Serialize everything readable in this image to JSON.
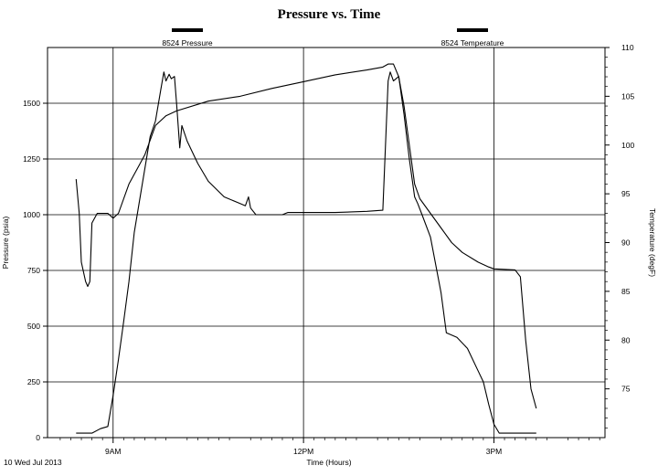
{
  "chart_data": {
    "type": "line",
    "title": "Pressure vs. Time",
    "xlabel": "Time (Hours)",
    "ylabel": "Pressure (psia)",
    "y2label": "Temperature (degF)",
    "date_label": "10 Wed Jul 2013",
    "x_range": [
      "07:58",
      "16:45"
    ],
    "x_ticks": [
      {
        "time": "09:00",
        "label": "9AM"
      },
      {
        "time": "12:00",
        "label": "12PM"
      },
      {
        "time": "15:00",
        "label": "3PM"
      }
    ],
    "ylim": [
      0,
      1750
    ],
    "y_ticks": [
      0,
      250,
      500,
      750,
      1000,
      1250,
      1500
    ],
    "y2lim": [
      70,
      110
    ],
    "y2_ticks": [
      75,
      80,
      85,
      90,
      95,
      100,
      105,
      110
    ],
    "grid": true,
    "legend_position": "top",
    "series": [
      {
        "name": "8524 Pressure",
        "axis": "left",
        "color": "#000000",
        "points": [
          [
            "08:25",
            20
          ],
          [
            "08:40",
            20
          ],
          [
            "08:48",
            40
          ],
          [
            "08:55",
            50
          ],
          [
            "09:00",
            190
          ],
          [
            "09:05",
            350
          ],
          [
            "09:10",
            520
          ],
          [
            "09:15",
            700
          ],
          [
            "09:20",
            920
          ],
          [
            "09:28",
            1150
          ],
          [
            "09:35",
            1350
          ],
          [
            "09:40",
            1420
          ],
          [
            "09:45",
            1560
          ],
          [
            "09:48",
            1640
          ],
          [
            "09:50",
            1600
          ],
          [
            "09:53",
            1630
          ],
          [
            "09:55",
            1610
          ],
          [
            "09:58",
            1620
          ],
          [
            "10:00",
            1500
          ],
          [
            "10:03",
            1300
          ],
          [
            "10:05",
            1400
          ],
          [
            "10:10",
            1330
          ],
          [
            "10:20",
            1230
          ],
          [
            "10:30",
            1150
          ],
          [
            "10:45",
            1080
          ],
          [
            "11:00",
            1050
          ],
          [
            "11:05",
            1040
          ],
          [
            "11:08",
            1080
          ],
          [
            "11:10",
            1030
          ],
          [
            "11:15",
            1000
          ],
          [
            "11:30",
            1000
          ],
          [
            "11:40",
            1000
          ],
          [
            "11:45",
            1010
          ],
          [
            "12:00",
            1010
          ],
          [
            "12:30",
            1010
          ],
          [
            "13:00",
            1015
          ],
          [
            "13:15",
            1020
          ],
          [
            "13:20",
            1600
          ],
          [
            "13:22",
            1640
          ],
          [
            "13:25",
            1600
          ],
          [
            "13:30",
            1620
          ],
          [
            "13:35",
            1450
          ],
          [
            "13:40",
            1250
          ],
          [
            "13:45",
            1080
          ],
          [
            "13:48",
            1050
          ],
          [
            "13:52",
            1000
          ],
          [
            "14:00",
            900
          ],
          [
            "14:10",
            650
          ],
          [
            "14:15",
            470
          ],
          [
            "14:25",
            450
          ],
          [
            "14:35",
            400
          ],
          [
            "14:45",
            300
          ],
          [
            "14:50",
            250
          ],
          [
            "14:55",
            150
          ],
          [
            "15:00",
            60
          ],
          [
            "15:05",
            20
          ],
          [
            "15:20",
            20
          ],
          [
            "15:40",
            20
          ]
        ]
      },
      {
        "name": "8524 Temperature",
        "axis": "right",
        "color": "#000000",
        "points": [
          [
            "08:25",
            96.5
          ],
          [
            "08:28",
            93
          ],
          [
            "08:30",
            88
          ],
          [
            "08:34",
            86
          ],
          [
            "08:36",
            85.5
          ],
          [
            "08:38",
            86
          ],
          [
            "08:40",
            92
          ],
          [
            "08:45",
            93
          ],
          [
            "08:55",
            93
          ],
          [
            "09:00",
            92.5
          ],
          [
            "09:05",
            93
          ],
          [
            "09:15",
            96
          ],
          [
            "09:25",
            98
          ],
          [
            "09:30",
            99
          ],
          [
            "09:40",
            102
          ],
          [
            "09:50",
            103
          ],
          [
            "10:00",
            103.5
          ],
          [
            "10:30",
            104.5
          ],
          [
            "11:00",
            105
          ],
          [
            "11:30",
            105.8
          ],
          [
            "12:00",
            106.5
          ],
          [
            "12:30",
            107.2
          ],
          [
            "13:00",
            107.7
          ],
          [
            "13:15",
            108
          ],
          [
            "13:20",
            108.3
          ],
          [
            "13:25",
            108.3
          ],
          [
            "13:30",
            107
          ],
          [
            "13:35",
            104
          ],
          [
            "13:40",
            100
          ],
          [
            "13:45",
            96
          ],
          [
            "13:50",
            94.5
          ],
          [
            "14:00",
            93
          ],
          [
            "14:10",
            91.5
          ],
          [
            "14:20",
            90
          ],
          [
            "14:30",
            89
          ],
          [
            "14:45",
            88
          ],
          [
            "14:55",
            87.5
          ],
          [
            "15:00",
            87.3
          ],
          [
            "15:20",
            87.2
          ],
          [
            "15:25",
            86.5
          ],
          [
            "15:30",
            80
          ],
          [
            "15:35",
            75
          ],
          [
            "15:40",
            73
          ]
        ]
      }
    ]
  }
}
